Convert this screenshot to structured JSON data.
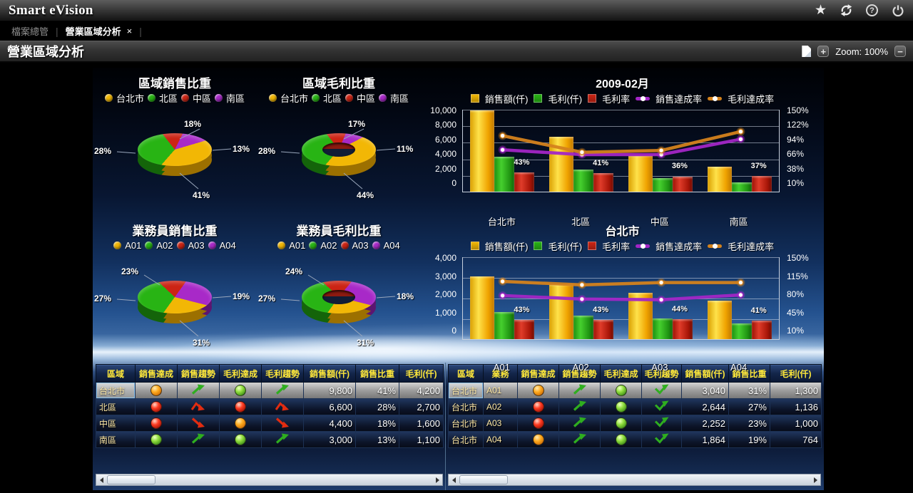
{
  "titlebar": {
    "app_title": "Smart eVision"
  },
  "titlebar_icons": {
    "favorite": "star-icon",
    "refresh": "refresh-icon",
    "help": "help-icon",
    "power": "power-icon"
  },
  "tabbar": {
    "separator": "|",
    "tabs": [
      {
        "label": "檔案總管",
        "active": false
      },
      {
        "label": "營業區域分析",
        "active": true,
        "close_glyph": "×"
      }
    ]
  },
  "page_header": {
    "title": "營業區域分析",
    "zoom_in": "+",
    "zoom_label": "Zoom: 100%",
    "zoom_out": "−"
  },
  "colors": {
    "series_yellow": "#f2b705",
    "series_green": "#28b414",
    "series_red": "#cc2414",
    "series_purple": "#a829c8",
    "line_purple": "#a226c6",
    "line_orange": "#d4821c",
    "header_text": "#ffe83a"
  },
  "chart_data": [
    {
      "id": "pie-region-sales",
      "type": "pie",
      "title": "區域銷售比重",
      "donut": false,
      "start_deg": 322,
      "labels": [
        "台北市",
        "北區",
        "中區",
        "南區"
      ],
      "colors": [
        "#f2b705",
        "#28b414",
        "#cc2414",
        "#a829c8"
      ],
      "values": [
        41,
        28,
        18,
        13
      ]
    },
    {
      "id": "pie-region-profit",
      "type": "pie",
      "title": "區域毛利比重",
      "donut": true,
      "start_deg": 322,
      "labels": [
        "台北市",
        "北區",
        "中區",
        "南區"
      ],
      "colors": [
        "#f2b705",
        "#28b414",
        "#cc2414",
        "#a829c8"
      ],
      "values": [
        44,
        28,
        17,
        11
      ]
    },
    {
      "id": "pie-salesman-sales",
      "type": "pie",
      "title": "業務員銷售比重",
      "donut": false,
      "start_deg": 313,
      "labels": [
        "A01",
        "A02",
        "A03",
        "A04"
      ],
      "colors": [
        "#f2b705",
        "#28b414",
        "#cc2414",
        "#a829c8"
      ],
      "values": [
        31,
        27,
        23,
        19
      ]
    },
    {
      "id": "pie-salesman-profit",
      "type": "pie",
      "title": "業務員毛利比重",
      "donut": true,
      "start_deg": 313,
      "labels": [
        "A01",
        "A02",
        "A03",
        "A04"
      ],
      "colors": [
        "#f2b705",
        "#28b414",
        "#cc2414",
        "#a829c8"
      ],
      "values": [
        31,
        27,
        24,
        18
      ]
    },
    {
      "id": "bar-month",
      "type": "bar",
      "title": "2009-02月",
      "categories": [
        "台北市",
        "北區",
        "中區",
        "南區"
      ],
      "left_ticks": [
        "10,000",
        "8,000",
        "6,000",
        "4,000",
        "2,000",
        "0"
      ],
      "left_max": 10000,
      "right_ticks": [
        "150%",
        "122%",
        "94%",
        "66%",
        "38%",
        "10%"
      ],
      "right_min": 10,
      "right_max": 150,
      "series": [
        {
          "name": "銷售額(仟)",
          "kind": "bar",
          "axis": "left",
          "color": "#f2b705",
          "values": [
            9800,
            6600,
            4400,
            3000
          ]
        },
        {
          "name": "毛利(仟)",
          "kind": "bar",
          "axis": "left",
          "color": "#28b414",
          "values": [
            4200,
            2700,
            1600,
            1100
          ]
        },
        {
          "name": "毛利率",
          "kind": "bar",
          "axis": "right",
          "color": "#cc2414",
          "values": [
            43,
            41,
            36,
            37
          ],
          "value_labels": [
            "43%",
            "41%",
            "36%",
            "37%"
          ]
        },
        {
          "name": "銷售達成率",
          "kind": "line",
          "axis": "right",
          "color": "#a226c6",
          "values": [
            82,
            74,
            74,
            100
          ]
        },
        {
          "name": "毛利達成率",
          "kind": "line",
          "axis": "right",
          "color": "#d4821c",
          "values": [
            106,
            78,
            81,
            113
          ]
        }
      ]
    },
    {
      "id": "bar-taipei",
      "type": "bar",
      "title": "台北市",
      "categories": [
        "A01",
        "A02",
        "A03",
        "A04"
      ],
      "left_ticks": [
        "4,000",
        "3,000",
        "2,000",
        "1,000",
        "0"
      ],
      "left_max": 4000,
      "right_ticks": [
        "150%",
        "115%",
        "80%",
        "45%",
        "10%"
      ],
      "right_min": 10,
      "right_max": 150,
      "series": [
        {
          "name": "銷售額(仟)",
          "kind": "bar",
          "axis": "left",
          "color": "#f2b705",
          "values": [
            3040,
            2644,
            2252,
            1864
          ]
        },
        {
          "name": "毛利(仟)",
          "kind": "bar",
          "axis": "left",
          "color": "#28b414",
          "values": [
            1300,
            1136,
            1000,
            764
          ]
        },
        {
          "name": "毛利率",
          "kind": "bar",
          "axis": "right",
          "color": "#cc2414",
          "values": [
            43,
            43,
            44,
            41
          ],
          "value_labels": [
            "43%",
            "43%",
            "44%",
            "41%"
          ]
        },
        {
          "name": "銷售達成率",
          "kind": "line",
          "axis": "right",
          "color": "#a226c6",
          "values": [
            85,
            79,
            78,
            86
          ]
        },
        {
          "name": "毛利達成率",
          "kind": "line",
          "axis": "right",
          "color": "#d4821c",
          "values": [
            109,
            103,
            107,
            107
          ]
        }
      ]
    },
    {
      "id": "table-region",
      "type": "table",
      "headers": [
        "區域",
        "銷售達成",
        "銷售趨勢",
        "毛利達成",
        "毛利趨勢",
        "銷售額(仟)",
        "銷售比重",
        "毛利(仟)"
      ],
      "rows": [
        {
          "selected": true,
          "cells": [
            {
              "t": "text",
              "v": "台北市"
            },
            {
              "t": "ball",
              "c": "orange"
            },
            {
              "t": "arrow",
              "k": "up",
              "c": "green"
            },
            {
              "t": "ball",
              "c": "green"
            },
            {
              "t": "arrow",
              "k": "up",
              "c": "green"
            },
            {
              "t": "num",
              "v": "9,800"
            },
            {
              "t": "num",
              "v": "41%"
            },
            {
              "t": "num",
              "v": "4,200"
            }
          ]
        },
        {
          "selected": false,
          "cells": [
            {
              "t": "text",
              "v": "北區"
            },
            {
              "t": "ball",
              "c": "red"
            },
            {
              "t": "arrow",
              "k": "peak",
              "c": "red"
            },
            {
              "t": "ball",
              "c": "red"
            },
            {
              "t": "arrow",
              "k": "peak",
              "c": "red"
            },
            {
              "t": "num",
              "v": "6,600"
            },
            {
              "t": "num",
              "v": "28%"
            },
            {
              "t": "num",
              "v": "2,700"
            }
          ]
        },
        {
          "selected": false,
          "cells": [
            {
              "t": "text",
              "v": "中區"
            },
            {
              "t": "ball",
              "c": "red"
            },
            {
              "t": "arrow",
              "k": "down",
              "c": "red"
            },
            {
              "t": "ball",
              "c": "orange"
            },
            {
              "t": "arrow",
              "k": "down",
              "c": "red"
            },
            {
              "t": "num",
              "v": "4,400"
            },
            {
              "t": "num",
              "v": "18%"
            },
            {
              "t": "num",
              "v": "1,600"
            }
          ]
        },
        {
          "selected": false,
          "cells": [
            {
              "t": "text",
              "v": "南區"
            },
            {
              "t": "ball",
              "c": "green"
            },
            {
              "t": "arrow",
              "k": "up",
              "c": "green"
            },
            {
              "t": "ball",
              "c": "green"
            },
            {
              "t": "arrow",
              "k": "up",
              "c": "green"
            },
            {
              "t": "num",
              "v": "3,000"
            },
            {
              "t": "num",
              "v": "13%"
            },
            {
              "t": "num",
              "v": "1,100"
            }
          ]
        }
      ]
    },
    {
      "id": "table-salesman",
      "type": "table",
      "headers": [
        "區域",
        "業務",
        "銷售達成",
        "銷售趨勢",
        "毛利達成",
        "毛利趨勢",
        "銷售額(仟)",
        "銷售比重",
        "毛利(仟)"
      ],
      "rows": [
        {
          "selected": true,
          "cells": [
            {
              "t": "text",
              "v": "台北市"
            },
            {
              "t": "text",
              "v": "A01"
            },
            {
              "t": "ball",
              "c": "orange"
            },
            {
              "t": "arrow",
              "k": "up",
              "c": "green"
            },
            {
              "t": "ball",
              "c": "green"
            },
            {
              "t": "arrow",
              "k": "check",
              "c": "green"
            },
            {
              "t": "num",
              "v": "3,040"
            },
            {
              "t": "num",
              "v": "31%"
            },
            {
              "t": "num",
              "v": "1,300"
            }
          ]
        },
        {
          "selected": false,
          "cells": [
            {
              "t": "text",
              "v": "台北市"
            },
            {
              "t": "text",
              "v": "A02"
            },
            {
              "t": "ball",
              "c": "red"
            },
            {
              "t": "arrow",
              "k": "up",
              "c": "green"
            },
            {
              "t": "ball",
              "c": "green"
            },
            {
              "t": "arrow",
              "k": "check",
              "c": "green"
            },
            {
              "t": "num",
              "v": "2,644"
            },
            {
              "t": "num",
              "v": "27%"
            },
            {
              "t": "num",
              "v": "1,136"
            }
          ]
        },
        {
          "selected": false,
          "cells": [
            {
              "t": "text",
              "v": "台北市"
            },
            {
              "t": "text",
              "v": "A03"
            },
            {
              "t": "ball",
              "c": "red"
            },
            {
              "t": "arrow",
              "k": "up",
              "c": "green"
            },
            {
              "t": "ball",
              "c": "green"
            },
            {
              "t": "arrow",
              "k": "check",
              "c": "green"
            },
            {
              "t": "num",
              "v": "2,252"
            },
            {
              "t": "num",
              "v": "23%"
            },
            {
              "t": "num",
              "v": "1,000"
            }
          ]
        },
        {
          "selected": false,
          "cells": [
            {
              "t": "text",
              "v": "台北市"
            },
            {
              "t": "text",
              "v": "A04"
            },
            {
              "t": "ball",
              "c": "orange"
            },
            {
              "t": "arrow",
              "k": "up",
              "c": "green"
            },
            {
              "t": "ball",
              "c": "green"
            },
            {
              "t": "arrow",
              "k": "check",
              "c": "green"
            },
            {
              "t": "num",
              "v": "1,864"
            },
            {
              "t": "num",
              "v": "19%"
            },
            {
              "t": "num",
              "v": "764"
            }
          ]
        }
      ]
    }
  ]
}
